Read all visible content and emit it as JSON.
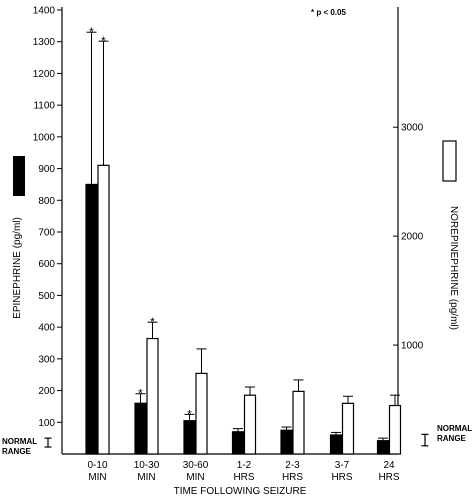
{
  "chart_data": {
    "type": "bar",
    "xlabel": "TIME FOLLOWING SEIZURE",
    "ylabel_left": "EPINEPHRINE (pg/ml)",
    "ylabel_right": "NOREPINEPHRINE (pg/ml)",
    "significance_note": "* p < 0.05",
    "normal_range_label_left": [
      "NORMAL",
      "RANGE"
    ],
    "normal_range_label_right": [
      "NORMAL",
      "RANGE"
    ],
    "categories": [
      [
        "0-10",
        "MIN"
      ],
      [
        "10-30",
        "MIN"
      ],
      [
        "30-60",
        "MIN"
      ],
      [
        "1-2",
        "HRS"
      ],
      [
        "2-3",
        "HRS"
      ],
      [
        "3-7",
        "HRS"
      ],
      [
        "24",
        "HRS"
      ]
    ],
    "left_axis": {
      "ylim": [
        0,
        1400
      ],
      "ticks": [
        "100",
        "200",
        "300",
        "400",
        "500",
        "600",
        "700",
        "800",
        "900",
        "1000",
        "1100",
        "1200",
        "1300",
        "1400"
      ]
    },
    "right_axis": {
      "ylim": [
        0,
        4076
      ],
      "ticks": [
        "1000",
        "2000",
        "3000"
      ]
    },
    "normal_range": {
      "epinephrine": [
        22,
        50
      ],
      "norepinephrine": [
        75,
        180
      ]
    },
    "series": [
      {
        "name": "EPINEPHRINE",
        "axis": "left",
        "color": "#000000",
        "values": [
          850,
          160,
          105,
          70,
          75,
          60,
          42
        ],
        "error_upper": [
          1330,
          190,
          125,
          80,
          85,
          68,
          50
        ],
        "significant": [
          true,
          true,
          true,
          false,
          false,
          false,
          false
        ]
      },
      {
        "name": "NOREPINEPHRINE",
        "axis": "right",
        "color": "#ffffff",
        "values": [
          2650,
          1060,
          740,
          540,
          575,
          465,
          445
        ],
        "error_upper": [
          3790,
          1210,
          965,
          615,
          680,
          530,
          540
        ],
        "significant": [
          true,
          true,
          false,
          false,
          false,
          false,
          false
        ]
      }
    ]
  }
}
